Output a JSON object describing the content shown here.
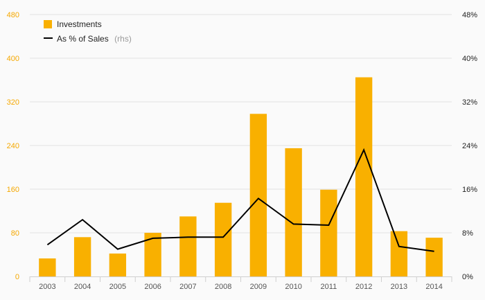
{
  "chart_data": {
    "type": "bar",
    "categories": [
      "2003",
      "2004",
      "2005",
      "2006",
      "2007",
      "2008",
      "2009",
      "2010",
      "2011",
      "2012",
      "2013",
      "2014"
    ],
    "series": [
      {
        "name": "Investments",
        "type": "bar",
        "axis": "left",
        "color": "#f9b000",
        "values": [
          33,
          72,
          42,
          80,
          110,
          135,
          298,
          235,
          159,
          365,
          83,
          71
        ]
      },
      {
        "name": "As % of Sales",
        "name_suffix": "(rhs)",
        "type": "line",
        "axis": "right",
        "color": "#000000",
        "values": [
          5.8,
          10.4,
          5.0,
          7.0,
          7.2,
          7.2,
          14.3,
          9.6,
          9.4,
          23.2,
          5.5,
          4.6
        ]
      }
    ],
    "y_left": {
      "ticks": [
        "0",
        "80",
        "160",
        "240",
        "320",
        "400",
        "480"
      ],
      "ylim": [
        0,
        480
      ]
    },
    "y_right": {
      "ticks": [
        "0%",
        "8%",
        "16%",
        "24%",
        "32%",
        "40%",
        "48%"
      ],
      "ylim": [
        0,
        48
      ]
    },
    "grid": true,
    "legend_position": "top-left",
    "title": "",
    "xlabel": "",
    "ylabel": ""
  }
}
